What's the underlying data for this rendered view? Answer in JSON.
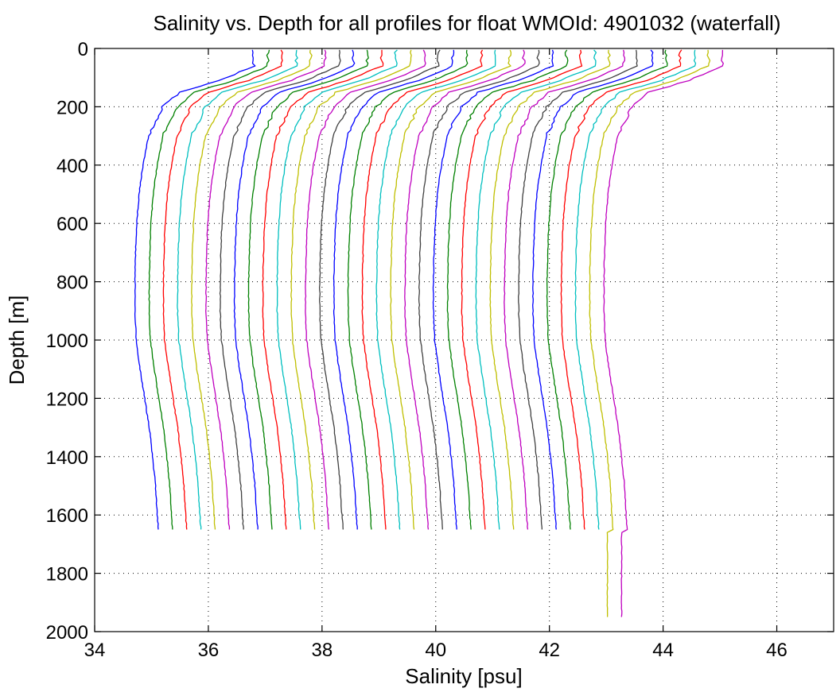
{
  "chart_data": {
    "type": "line",
    "title": "Salinity vs. Depth for all profiles for float WMOId: 4901032 (waterfall)",
    "xlabel": "Salinity [psu]",
    "ylabel": "Depth [m]",
    "xlim": [
      34,
      47
    ],
    "ylim": [
      0,
      2000
    ],
    "y_reversed": true,
    "grid": true,
    "xticks": [
      34,
      36,
      38,
      40,
      42,
      44,
      46
    ],
    "yticks": [
      0,
      200,
      400,
      600,
      800,
      1000,
      1200,
      1400,
      1600,
      1800,
      2000
    ],
    "color_cycle": [
      "#0000ff",
      "#008000",
      "#ff0000",
      "#00bfbf",
      "#bfbf00",
      "#bf00bf",
      "#404040"
    ],
    "base_profile": {
      "depth": [
        5,
        60,
        110,
        150,
        200,
        300,
        400,
        500,
        600,
        700,
        800,
        900,
        1000,
        1100,
        1200,
        1300,
        1400,
        1500,
        1600,
        1650
      ],
      "salinity": [
        36.8,
        36.8,
        36.2,
        35.5,
        35.2,
        34.95,
        34.85,
        34.78,
        34.74,
        34.72,
        34.71,
        34.71,
        34.73,
        34.8,
        34.88,
        34.96,
        35.02,
        35.07,
        35.1,
        35.12
      ]
    },
    "waterfall": {
      "profile_count": 34,
      "offset_per_profile_psu": 0.25,
      "first_offset_psu": 0,
      "deep_profiles": [
        32,
        33
      ],
      "deep_max_depth_m": 1950,
      "deep_salinity_at_1950_psu_relative": 0.12
    }
  }
}
